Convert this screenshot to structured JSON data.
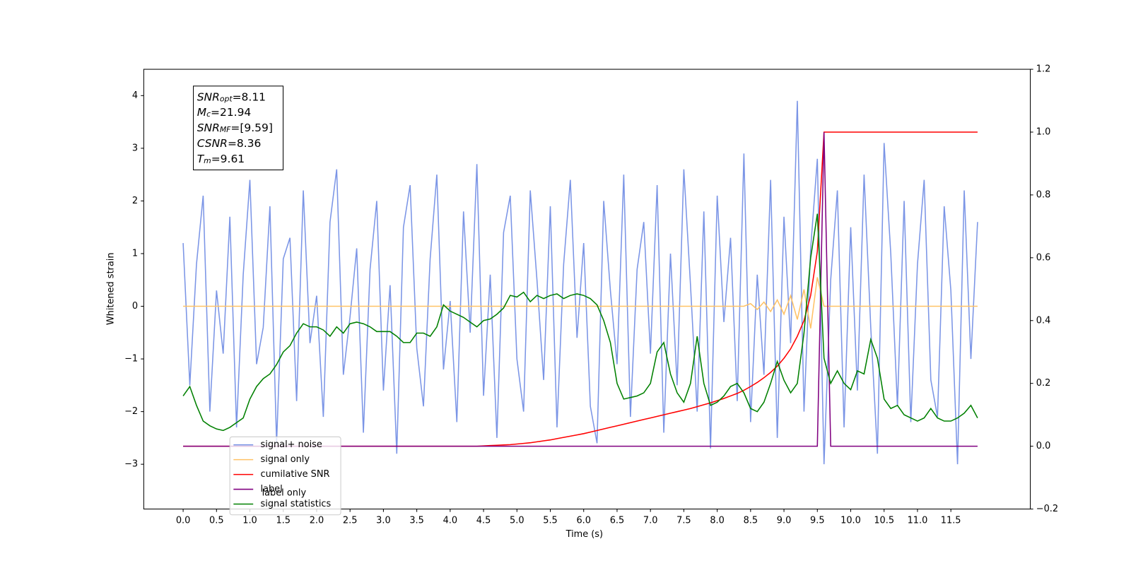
{
  "chart_data": {
    "type": "line",
    "xlabel": "Time (s)",
    "ylabel": "Whitened strain",
    "x": [
      0,
      0.1,
      0.2,
      0.3,
      0.4,
      0.5,
      0.6,
      0.7,
      0.8,
      0.9,
      1,
      1.1,
      1.2,
      1.3,
      1.4,
      1.5,
      1.6,
      1.7,
      1.8,
      1.9,
      2,
      2.1,
      2.2,
      2.3,
      2.4,
      2.5,
      2.6,
      2.7,
      2.8,
      2.9,
      3,
      3.1,
      3.2,
      3.3,
      3.4,
      3.5,
      3.6,
      3.7,
      3.8,
      3.9,
      4,
      4.1,
      4.2,
      4.3,
      4.4,
      4.5,
      4.6,
      4.7,
      4.8,
      4.9,
      5,
      5.1,
      5.2,
      5.3,
      5.4,
      5.5,
      5.6,
      5.7,
      5.8,
      5.9,
      6,
      6.1,
      6.2,
      6.3,
      6.4,
      6.5,
      6.6,
      6.7,
      6.8,
      6.9,
      7,
      7.1,
      7.2,
      7.3,
      7.4,
      7.5,
      7.6,
      7.7,
      7.8,
      7.9,
      8,
      8.1,
      8.2,
      8.3,
      8.4,
      8.5,
      8.6,
      8.7,
      8.8,
      8.9,
      9,
      9.1,
      9.2,
      9.3,
      9.4,
      9.5,
      9.6,
      9.7,
      9.8,
      9.9,
      10,
      10.1,
      10.2,
      10.3,
      10.4,
      10.5,
      10.6,
      10.7,
      10.8,
      10.9,
      11,
      11.1,
      11.2,
      11.3,
      11.4,
      11.5,
      11.6,
      11.7,
      11.8,
      11.9
    ],
    "series": [
      {
        "name": "signal+ noise",
        "color": "#7b95e6",
        "axis": "y",
        "values": [
          1.2,
          -1.5,
          0.8,
          2.1,
          -2.0,
          0.3,
          -0.9,
          1.7,
          -2.3,
          0.6,
          2.4,
          -1.1,
          -0.4,
          1.9,
          -2.6,
          0.9,
          1.3,
          -1.8,
          2.2,
          -0.7,
          0.2,
          -2.1,
          1.6,
          2.6,
          -1.3,
          -0.2,
          1.1,
          -2.4,
          0.7,
          2.0,
          -1.6,
          0.4,
          -2.8,
          1.5,
          2.3,
          -0.8,
          -1.9,
          0.9,
          2.5,
          -1.2,
          0.1,
          -2.2,
          1.8,
          -0.5,
          2.7,
          -1.7,
          0.6,
          -2.5,
          1.4,
          2.1,
          -1.0,
          -2.0,
          2.2,
          0.5,
          -1.4,
          1.9,
          -2.3,
          0.8,
          2.4,
          -0.6,
          1.2,
          -1.9,
          -2.6,
          2.0,
          0.3,
          -1.1,
          2.5,
          -2.1,
          0.7,
          1.6,
          -0.9,
          2.3,
          -2.4,
          1.0,
          -1.5,
          2.6,
          0.4,
          -2.0,
          1.8,
          -2.7,
          2.1,
          -0.3,
          1.3,
          -1.8,
          2.9,
          -2.2,
          0.6,
          -1.3,
          2.4,
          -2.5,
          1.7,
          -0.7,
          3.9,
          -2.0,
          1.1,
          2.8,
          -3.0,
          0.5,
          2.2,
          -2.3,
          1.5,
          -1.6,
          2.5,
          -0.4,
          -2.8,
          3.1,
          1.0,
          -1.9,
          2.0,
          -2.2,
          0.8,
          2.4,
          -1.4,
          -2.1,
          1.9,
          0.3,
          -3.0,
          2.2,
          -1.0,
          1.6
        ]
      },
      {
        "name": "signal only",
        "color": "#ffc266",
        "axis": "y",
        "values": [
          0,
          0,
          0,
          0,
          0,
          0,
          0,
          0,
          0,
          0,
          0,
          0,
          0,
          0,
          0,
          0,
          0,
          0,
          0,
          0,
          0,
          0,
          0,
          0,
          0,
          0,
          0,
          0,
          0,
          0,
          0,
          0,
          0,
          0,
          0,
          0,
          0,
          0,
          0,
          0,
          0,
          0,
          0,
          0,
          0,
          0,
          0,
          0,
          0,
          0,
          0,
          0,
          0,
          0,
          0,
          0,
          0,
          0,
          0,
          0,
          0,
          0,
          0,
          0,
          0,
          0,
          0,
          0,
          0,
          0,
          0,
          0,
          0,
          0,
          0,
          0,
          0,
          0,
          0,
          0,
          0,
          0,
          0,
          0,
          0,
          0.05,
          -0.06,
          0.08,
          -0.1,
          0.12,
          -0.15,
          0.2,
          -0.25,
          0.32,
          -0.42,
          0.55,
          0,
          0,
          0,
          0,
          0,
          0,
          0,
          0,
          0,
          0,
          0,
          0,
          0,
          0,
          0,
          0,
          0,
          0,
          0,
          0,
          0,
          0,
          0,
          0
        ]
      },
      {
        "name": "cumilative SNR",
        "color": "#ff0000",
        "axis": "y2",
        "values": [
          0,
          0,
          0,
          0,
          0,
          0,
          0,
          0,
          0,
          0,
          0,
          0,
          0,
          0,
          0,
          0,
          0,
          0,
          0,
          0,
          0,
          0,
          0,
          0,
          0,
          0,
          0,
          0,
          0,
          0,
          0,
          0,
          0,
          0,
          0,
          0,
          0,
          0,
          0,
          0,
          0,
          0,
          0,
          0,
          0,
          0.001,
          0.002,
          0.003,
          0.004,
          0.005,
          0.007,
          0.009,
          0.011,
          0.014,
          0.017,
          0.02,
          0.024,
          0.028,
          0.032,
          0.036,
          0.04,
          0.045,
          0.05,
          0.055,
          0.06,
          0.065,
          0.07,
          0.075,
          0.08,
          0.085,
          0.09,
          0.095,
          0.1,
          0.105,
          0.11,
          0.115,
          0.12,
          0.126,
          0.132,
          0.138,
          0.145,
          0.152,
          0.16,
          0.168,
          0.178,
          0.19,
          0.203,
          0.218,
          0.235,
          0.255,
          0.28,
          0.31,
          0.35,
          0.4,
          0.48,
          0.62,
          1.0,
          1.0,
          1.0,
          1.0,
          1.0,
          1.0,
          1.0,
          1.0,
          1.0,
          1.0,
          1.0,
          1.0,
          1.0,
          1.0,
          1.0,
          1.0,
          1.0,
          1.0,
          1.0,
          1.0,
          1.0,
          1.0,
          1.0,
          1.0
        ]
      },
      {
        "name": "label",
        "color": "#800080",
        "axis": "y2",
        "values": [
          0,
          0,
          0,
          0,
          0,
          0,
          0,
          0,
          0,
          0,
          0,
          0,
          0,
          0,
          0,
          0,
          0,
          0,
          0,
          0,
          0,
          0,
          0,
          0,
          0,
          0,
          0,
          0,
          0,
          0,
          0,
          0,
          0,
          0,
          0,
          0,
          0,
          0,
          0,
          0,
          0,
          0,
          0,
          0,
          0,
          0,
          0,
          0,
          0,
          0,
          0,
          0,
          0,
          0,
          0,
          0,
          0,
          0,
          0,
          0,
          0,
          0,
          0,
          0,
          0,
          0,
          0,
          0,
          0,
          0,
          0,
          0,
          0,
          0,
          0,
          0,
          0,
          0,
          0,
          0,
          0,
          0,
          0,
          0,
          0,
          0,
          0,
          0,
          0,
          0,
          0,
          0,
          0,
          0,
          0,
          0,
          1,
          0,
          0,
          0,
          0,
          0,
          0,
          0,
          0,
          0,
          0,
          0,
          0,
          0,
          0,
          0,
          0,
          0,
          0,
          0,
          0,
          0,
          0,
          0
        ]
      },
      {
        "name": "signal statistics",
        "color": "#008000",
        "axis": "y2",
        "values": [
          0.16,
          0.19,
          0.13,
          0.08,
          0.065,
          0.055,
          0.05,
          0.06,
          0.075,
          0.09,
          0.15,
          0.19,
          0.215,
          0.23,
          0.26,
          0.3,
          0.32,
          0.36,
          0.39,
          0.38,
          0.38,
          0.37,
          0.35,
          0.38,
          0.36,
          0.39,
          0.395,
          0.39,
          0.38,
          0.365,
          0.365,
          0.365,
          0.35,
          0.33,
          0.33,
          0.36,
          0.36,
          0.35,
          0.38,
          0.45,
          0.43,
          0.42,
          0.41,
          0.395,
          0.38,
          0.4,
          0.405,
          0.42,
          0.44,
          0.48,
          0.475,
          0.49,
          0.46,
          0.48,
          0.47,
          0.48,
          0.485,
          0.47,
          0.48,
          0.485,
          0.48,
          0.47,
          0.45,
          0.4,
          0.33,
          0.2,
          0.15,
          0.155,
          0.16,
          0.17,
          0.2,
          0.3,
          0.33,
          0.23,
          0.17,
          0.14,
          0.2,
          0.35,
          0.2,
          0.13,
          0.14,
          0.16,
          0.19,
          0.2,
          0.17,
          0.12,
          0.11,
          0.14,
          0.2,
          0.27,
          0.21,
          0.17,
          0.2,
          0.36,
          0.6,
          0.74,
          0.28,
          0.2,
          0.24,
          0.2,
          0.18,
          0.24,
          0.23,
          0.34,
          0.28,
          0.15,
          0.12,
          0.13,
          0.1,
          0.09,
          0.08,
          0.09,
          0.12,
          0.09,
          0.08,
          0.08,
          0.09,
          0.105,
          0.13,
          0.09
        ]
      }
    ],
    "legend_extra": [
      "label only"
    ],
    "annotations": [
      {
        "text": "SNR",
        "sub": "opt",
        "value": "=8.11"
      },
      {
        "text": "M",
        "sub": "c",
        "value": "=21.94"
      },
      {
        "text": "SNR",
        "sub": "MF",
        "value": "=[9.59]"
      },
      {
        "text": "CSNR",
        "value": "=8.36"
      },
      {
        "text": "T",
        "sub": "m",
        "value": "=9.61"
      }
    ],
    "xlim": [
      -0.59,
      12.69
    ],
    "xticks": [
      {
        "value": 0,
        "label": "0.0"
      },
      {
        "value": 0.5,
        "label": "0.5"
      },
      {
        "value": 1,
        "label": "1.0"
      },
      {
        "value": 1.5,
        "label": "1.5"
      },
      {
        "value": 2,
        "label": "2.0"
      },
      {
        "value": 2.5,
        "label": "2.5"
      },
      {
        "value": 3,
        "label": "3.0"
      },
      {
        "value": 3.5,
        "label": "3.5"
      },
      {
        "value": 4,
        "label": "4.0"
      },
      {
        "value": 4.5,
        "label": "4.5"
      },
      {
        "value": 5,
        "label": "5.0"
      },
      {
        "value": 5.5,
        "label": "5.5"
      },
      {
        "value": 6,
        "label": "6.0"
      },
      {
        "value": 6.5,
        "label": "6.5"
      },
      {
        "value": 7,
        "label": "7.0"
      },
      {
        "value": 7.5,
        "label": "7.5"
      },
      {
        "value": 8,
        "label": "8.0"
      },
      {
        "value": 8.5,
        "label": "8.5"
      },
      {
        "value": 9,
        "label": "9.0"
      },
      {
        "value": 9.5,
        "label": "9.5"
      },
      {
        "value": 10,
        "label": "10.0"
      },
      {
        "value": 10.5,
        "label": "10.5"
      },
      {
        "value": 11,
        "label": "11.0"
      },
      {
        "value": 11.5,
        "label": "11.5"
      }
    ],
    "ylim": [
      -3.85,
      4.5
    ],
    "yticks": [
      {
        "value": -3,
        "label": "−3"
      },
      {
        "value": -2,
        "label": "−2"
      },
      {
        "value": -1,
        "label": "−1"
      },
      0,
      1,
      2,
      3,
      4
    ],
    "y2lim": [
      -0.2,
      1.2
    ],
    "y2ticks": [
      {
        "value": -0.2,
        "label": "−0.2"
      },
      {
        "value": 0,
        "label": "0.0"
      },
      {
        "value": 0.2,
        "label": "0.2"
      },
      {
        "value": 0.4,
        "label": "0.4"
      },
      {
        "value": 0.6,
        "label": "0.6"
      },
      {
        "value": 0.8,
        "label": "0.8"
      },
      {
        "value": 1,
        "label": "1.0"
      },
      {
        "value": 1.2,
        "label": "1.2"
      }
    ],
    "grid": false,
    "legend": "lower left"
  }
}
